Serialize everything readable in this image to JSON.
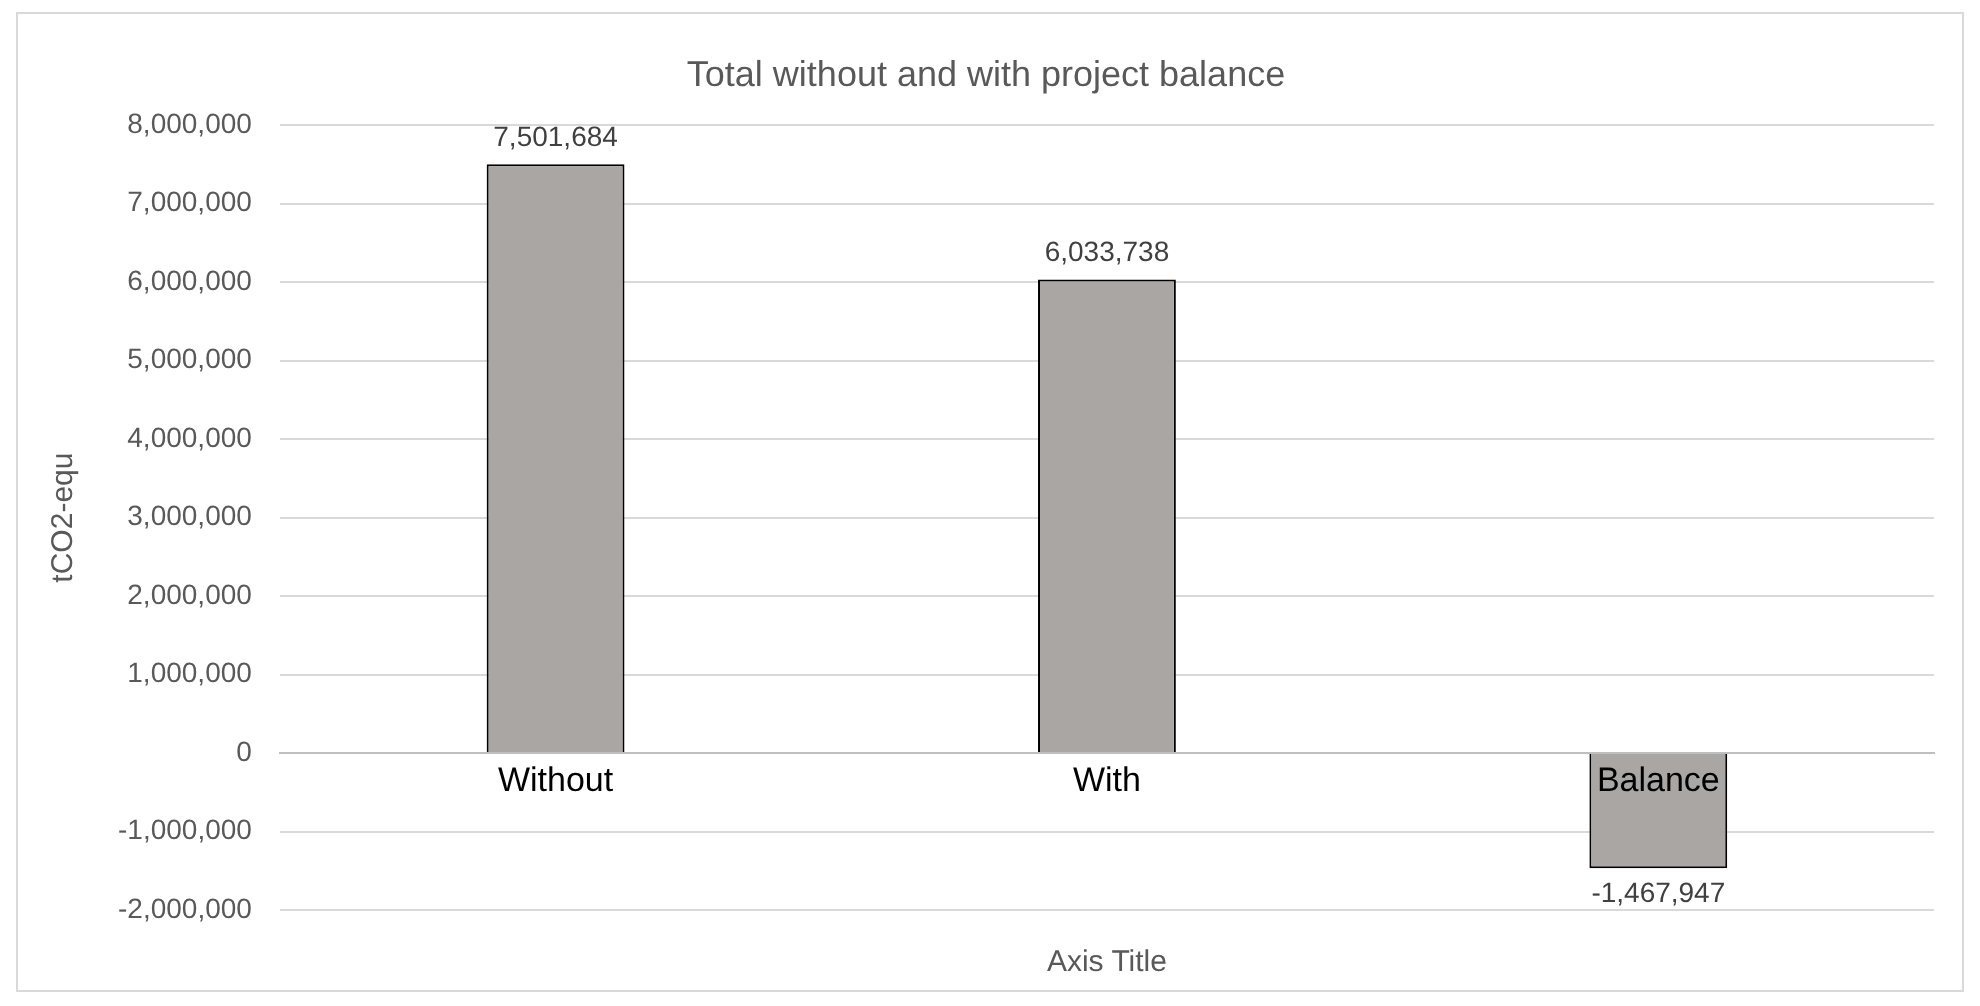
{
  "chart_data": {
    "type": "bar",
    "title": "Total without and with project balance",
    "ylabel": "tCO2-equ",
    "xlabel": "Axis Title",
    "categories": [
      "Without",
      "With",
      "Balance"
    ],
    "values": [
      7501684,
      6033738,
      -1467947
    ],
    "color": "#aaa6a3",
    "value_labels": [
      "7,501,684",
      "6,033,738",
      "-1,467,947"
    ],
    "ylim": [
      -2000000,
      8000000
    ],
    "yticks": [
      {
        "value": -2000000,
        "label": "-2,000,000"
      },
      {
        "value": -1000000,
        "label": "-1,000,000"
      },
      0,
      {
        "value": 1000000,
        "label": "1,000,000"
      },
      {
        "value": 2000000,
        "label": "2,000,000"
      },
      {
        "value": 3000000,
        "label": "3,000,000"
      },
      {
        "value": 4000000,
        "label": "4,000,000"
      },
      {
        "value": 5000000,
        "label": "5,000,000"
      },
      {
        "value": 6000000,
        "label": "6,000,000"
      },
      {
        "value": 7000000,
        "label": "7,000,000"
      },
      {
        "value": 8000000,
        "label": "8,000,000"
      }
    ],
    "grid": "y",
    "data_labels": true,
    "legend": false
  }
}
